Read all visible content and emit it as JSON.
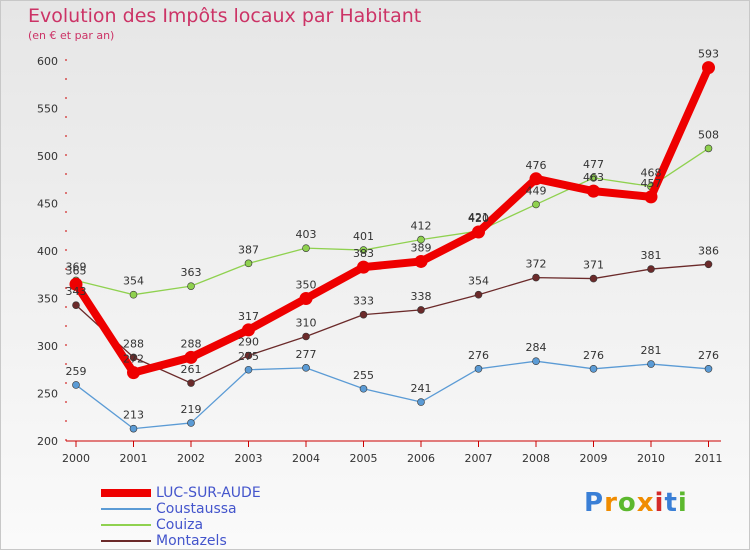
{
  "title": "Evolution des Impôts locaux par Habitant",
  "subtitle": "(en € et par an)",
  "brand": "Proxiti",
  "chart_data": {
    "type": "line",
    "x": [
      "2000",
      "2001",
      "2002",
      "2003",
      "2004",
      "2005",
      "2006",
      "2007",
      "2008",
      "2009",
      "2010",
      "2011"
    ],
    "ylim": [
      200,
      600
    ],
    "yticks": [
      200,
      250,
      300,
      350,
      400,
      450,
      500,
      550,
      600
    ],
    "grid": false,
    "legend": "bottom-left",
    "series": [
      {
        "name": "LUC-SUR-AUDE",
        "color": "#ee0000",
        "values": [
          365,
          272,
          288,
          317,
          350,
          383,
          389,
          420,
          476,
          463,
          457,
          593
        ]
      },
      {
        "name": "Coustaussa",
        "color": "#5b9bd5",
        "values": [
          259,
          213,
          219,
          275,
          277,
          255,
          241,
          276,
          284,
          276,
          281,
          276
        ]
      },
      {
        "name": "Couiza",
        "color": "#8fd14f",
        "values": [
          369,
          354,
          363,
          387,
          403,
          401,
          412,
          421,
          449,
          477,
          468,
          508
        ]
      },
      {
        "name": "Montazels",
        "color": "#6b2a2a",
        "values": [
          343,
          288,
          261,
          290,
          310,
          333,
          338,
          354,
          372,
          371,
          381,
          386
        ]
      }
    ]
  }
}
